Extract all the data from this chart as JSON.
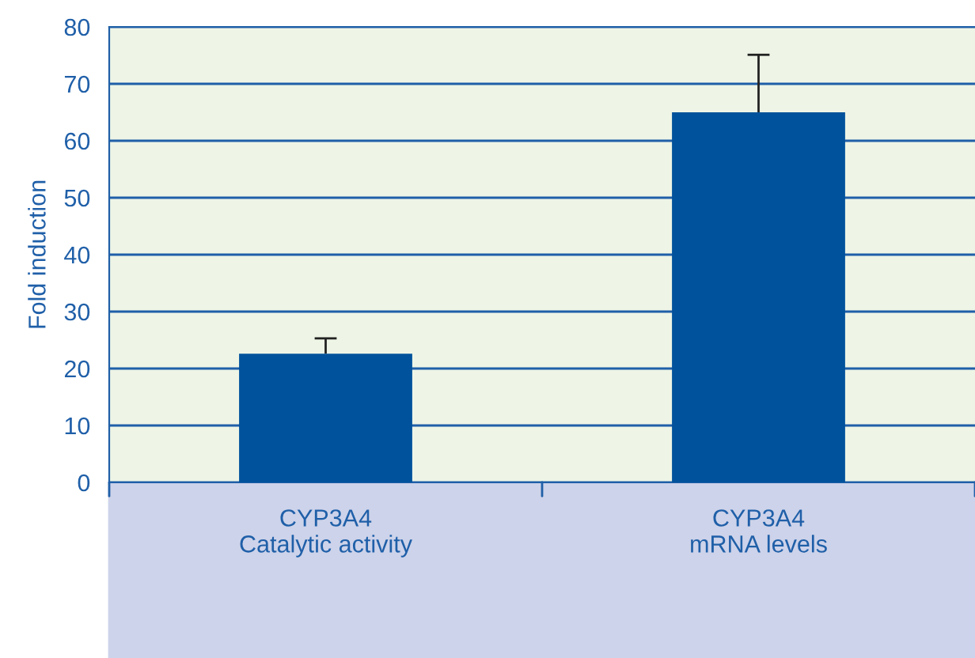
{
  "chart_data": {
    "type": "bar",
    "ylabel": "Fold induction",
    "categories": [
      "CYP3A4\nCatalytic activity",
      "CYP3A4\nmRNA levels"
    ],
    "values": [
      22.6,
      65
    ],
    "errors": [
      [
        22.6,
        25.3
      ],
      [
        65,
        75.1
      ]
    ],
    "color": "#00529c",
    "ylim": [
      0,
      80
    ],
    "yticks": [
      0,
      10,
      20,
      30,
      40,
      50,
      60,
      70,
      80
    ],
    "grid": "y"
  }
}
